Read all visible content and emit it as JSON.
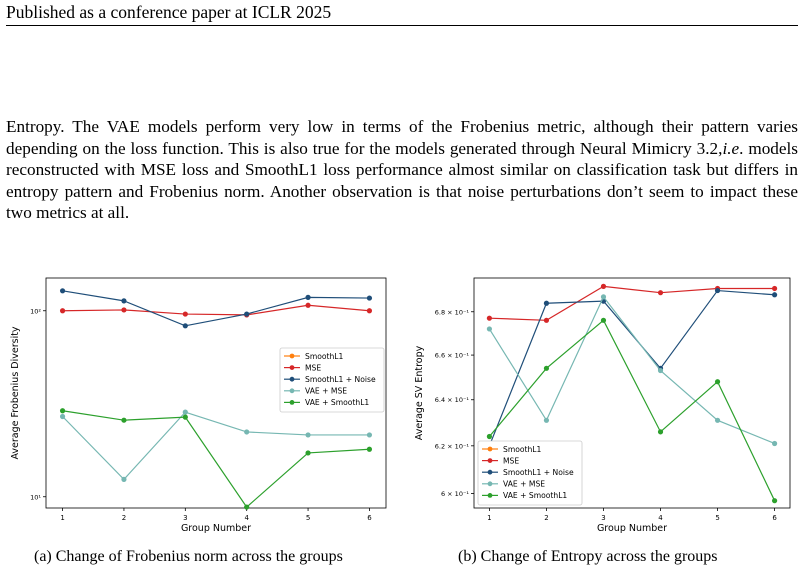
{
  "header": {
    "text": "Published as a conference paper at ICLR 2025"
  },
  "paragraph": {
    "p1": "Entropy. The VAE models perform very low in terms of the Frobenius metric, although their pattern varies depending on the loss function. This is also true for the models generated through Neural Mimicry 3.2,",
    "p2_italic": "i.e",
    "p3": ". models reconstructed with MSE loss and SmoothL1 loss performance almost similar on classification task but differs in entropy pattern and Frobenius norm. Another observation is that noise perturbations don’t seem to impact these two metrics at all."
  },
  "captions": {
    "a": "(a) Change of Frobenius norm across the groups",
    "b": "(b) Change of Entropy across the groups"
  },
  "colors": {
    "SmoothL1": "#ff7f0e",
    "MSE": "#d62728",
    "SmoothL1 + Noise": "#1f4e79",
    "VAE + MSE": "#76b7b2",
    "VAE + SmoothL1": "#2ca02c"
  },
  "chart_data": [
    {
      "type": "line",
      "xlabel": "Group Number",
      "ylabel": "Average Frobenius Diversity",
      "yscale": "log",
      "x": [
        1,
        2,
        3,
        4,
        5,
        6
      ],
      "x_ticks": [
        "1",
        "2",
        "3",
        "4",
        "5",
        "6"
      ],
      "y_ticks": [
        {
          "value": 100,
          "label": "10²"
        },
        {
          "value": 10,
          "label": "10¹"
        }
      ],
      "ylim": [
        8.7,
        150
      ],
      "legend": "center-right",
      "series": [
        {
          "name": "SmoothL1",
          "values": [
            null,
            null,
            null,
            null,
            null,
            null
          ]
        },
        {
          "name": "MSE",
          "values": [
            100,
            101,
            96,
            95,
            107,
            100
          ]
        },
        {
          "name": "SmoothL1 + Noise",
          "values": [
            128,
            113,
            83,
            96,
            118,
            117
          ]
        },
        {
          "name": "VAE + MSE",
          "values": [
            27,
            12.4,
            28.5,
            22.3,
            21.5,
            21.5
          ]
        },
        {
          "name": "VAE + SmoothL1",
          "values": [
            29,
            25.8,
            26.8,
            8.8,
            17.2,
            18
          ]
        }
      ]
    },
    {
      "type": "line",
      "xlabel": "Group Number",
      "ylabel": "Average SV Entropy",
      "yscale": "log",
      "x": [
        1,
        2,
        3,
        4,
        5,
        6
      ],
      "x_ticks": [
        "1",
        "2",
        "3",
        "4",
        "5",
        "6"
      ],
      "y_ticks": [
        {
          "value": 0.6,
          "label": "6 × 10⁻¹"
        },
        {
          "value": 0.62,
          "label": "6.2 × 10⁻¹"
        },
        {
          "value": 0.64,
          "label": "6.4 × 10⁻¹"
        },
        {
          "value": 0.66,
          "label": "6.6 × 10⁻¹"
        },
        {
          "value": 0.68,
          "label": "6.8 × 10⁻¹"
        }
      ],
      "ylim": [
        0.594,
        0.696
      ],
      "legend": "lower-left",
      "series": [
        {
          "name": "SmoothL1",
          "values": [
            null,
            null,
            null,
            null,
            null,
            null
          ]
        },
        {
          "name": "MSE",
          "values": [
            0.677,
            0.676,
            0.692,
            0.689,
            0.691,
            0.691
          ]
        },
        {
          "name": "SmoothL1 + Noise",
          "values": [
            0.62,
            0.684,
            0.685,
            0.654,
            0.69,
            0.688
          ]
        },
        {
          "name": "VAE + MSE",
          "values": [
            0.672,
            0.631,
            0.687,
            0.653,
            0.631,
            0.621
          ]
        },
        {
          "name": "VAE + SmoothL1",
          "values": [
            0.624,
            0.654,
            0.676,
            0.626,
            0.648,
            0.597
          ]
        }
      ]
    }
  ]
}
